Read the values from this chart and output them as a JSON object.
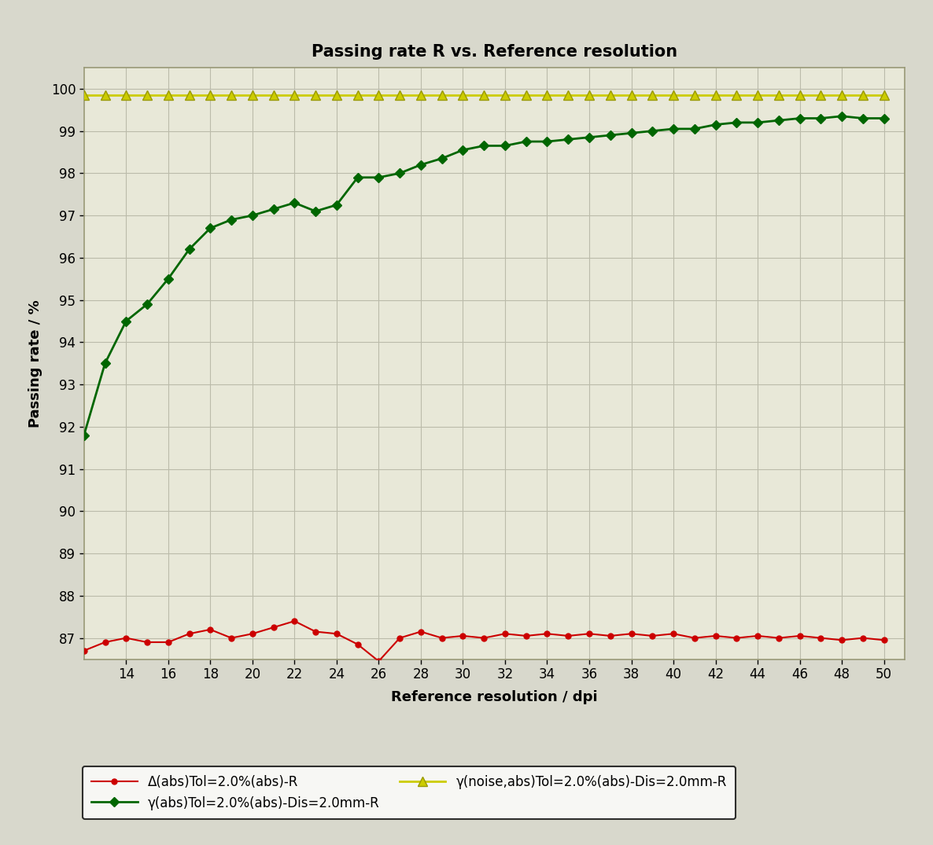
{
  "title": "Passing rate R vs. Reference resolution",
  "xlabel": "Reference resolution / dpi",
  "ylabel": "Passing rate / %",
  "background_color": "#d8d8cc",
  "plot_bg_color": "#e8e8d8",
  "ylim": [
    86.5,
    100.5
  ],
  "xlim": [
    12.0,
    51.0
  ],
  "yticks": [
    87,
    88,
    89,
    90,
    91,
    92,
    93,
    94,
    95,
    96,
    97,
    98,
    99,
    100
  ],
  "xticks": [
    14,
    16,
    18,
    20,
    22,
    24,
    26,
    28,
    30,
    32,
    34,
    36,
    38,
    40,
    42,
    44,
    46,
    48,
    50
  ],
  "red_x": [
    12,
    13,
    14,
    15,
    16,
    17,
    18,
    19,
    20,
    21,
    22,
    23,
    24,
    25,
    26,
    27,
    28,
    29,
    30,
    31,
    32,
    33,
    34,
    35,
    36,
    37,
    38,
    39,
    40,
    41,
    42,
    43,
    44,
    45,
    46,
    47,
    48,
    49,
    50
  ],
  "red_y": [
    86.7,
    86.9,
    87.0,
    86.9,
    86.9,
    87.1,
    87.2,
    87.0,
    87.1,
    87.25,
    87.4,
    87.15,
    87.1,
    86.85,
    86.45,
    87.0,
    87.15,
    87.0,
    87.05,
    87.0,
    87.1,
    87.05,
    87.1,
    87.05,
    87.1,
    87.05,
    87.1,
    87.05,
    87.1,
    87.0,
    87.05,
    87.0,
    87.05,
    87.0,
    87.05,
    87.0,
    86.95,
    87.0,
    86.95
  ],
  "green_x": [
    12,
    13,
    14,
    15,
    16,
    17,
    18,
    19,
    20,
    21,
    22,
    23,
    24,
    25,
    26,
    27,
    28,
    29,
    30,
    31,
    32,
    33,
    34,
    35,
    36,
    37,
    38,
    39,
    40,
    41,
    42,
    43,
    44,
    45,
    46,
    47,
    48,
    49,
    50
  ],
  "green_y": [
    91.8,
    93.5,
    94.5,
    94.9,
    95.5,
    96.2,
    96.7,
    96.9,
    97.0,
    97.15,
    97.3,
    97.1,
    97.25,
    97.9,
    97.9,
    98.0,
    98.2,
    98.35,
    98.55,
    98.65,
    98.65,
    98.75,
    98.75,
    98.8,
    98.85,
    98.9,
    98.95,
    99.0,
    99.05,
    99.05,
    99.15,
    99.2,
    99.2,
    99.25,
    99.3,
    99.3,
    99.35,
    99.3,
    99.3
  ],
  "yellow_x": [
    12,
    13,
    14,
    15,
    16,
    17,
    18,
    19,
    20,
    21,
    22,
    23,
    24,
    25,
    26,
    27,
    28,
    29,
    30,
    31,
    32,
    33,
    34,
    35,
    36,
    37,
    38,
    39,
    40,
    41,
    42,
    43,
    44,
    45,
    46,
    47,
    48,
    49,
    50
  ],
  "yellow_y": [
    99.85,
    99.85,
    99.85,
    99.85,
    99.85,
    99.85,
    99.85,
    99.85,
    99.85,
    99.85,
    99.85,
    99.85,
    99.85,
    99.85,
    99.85,
    99.85,
    99.85,
    99.85,
    99.85,
    99.85,
    99.85,
    99.85,
    99.85,
    99.85,
    99.85,
    99.85,
    99.85,
    99.85,
    99.85,
    99.85,
    99.85,
    99.85,
    99.85,
    99.85,
    99.85,
    99.85,
    99.85,
    99.85,
    99.85
  ],
  "red_color": "#cc0000",
  "green_color": "#006600",
  "yellow_color": "#cccc00",
  "yellow_edge_color": "#999900",
  "legend_labels": [
    "Δ(abs)Tol=2.0%(abs)-R",
    "γ(abs)Tol=2.0%(abs)-Dis=2.0mm-R",
    "γ(noise,abs)Tol=2.0%(abs)-Dis=2.0mm-R"
  ],
  "title_fontsize": 15,
  "axis_label_fontsize": 13,
  "tick_fontsize": 12,
  "legend_fontsize": 12,
  "grid_color": "#bbbbaa",
  "spine_color": "#999977"
}
